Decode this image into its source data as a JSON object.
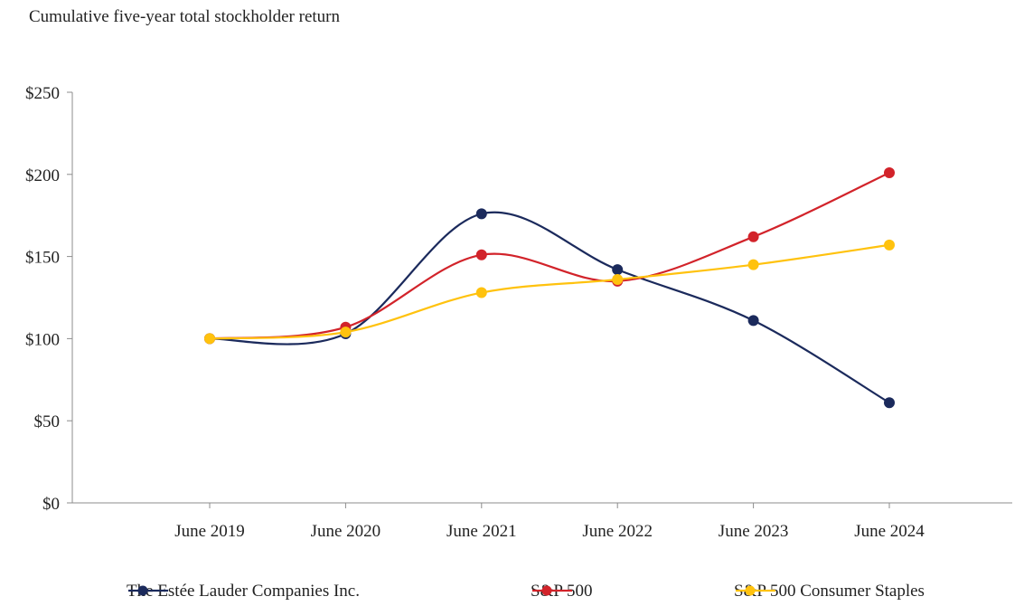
{
  "chart_data": {
    "type": "line",
    "title": "Cumulative five-year total stockholder return",
    "categories": [
      "June 2019",
      "June 2020",
      "June 2021",
      "June 2022",
      "June 2023",
      "June 2024"
    ],
    "series": [
      {
        "name": "The Estée Lauder Companies Inc.",
        "color": "#1b2a5c",
        "values": [
          100,
          103,
          176,
          142,
          111,
          61
        ]
      },
      {
        "name": "S&P 500",
        "color": "#d2232a",
        "values": [
          100,
          107,
          151,
          135,
          162,
          201
        ]
      },
      {
        "name": "S&P 500 Consumer Staples",
        "color": "#ffc20e",
        "values": [
          100,
          104,
          128,
          136,
          145,
          157
        ]
      }
    ],
    "yticks": [
      "$0",
      "$50",
      "$100",
      "$150",
      "$200",
      "$250"
    ],
    "ylim": [
      0,
      250
    ],
    "grid": false,
    "legend_position": "bottom",
    "smooth": true
  }
}
